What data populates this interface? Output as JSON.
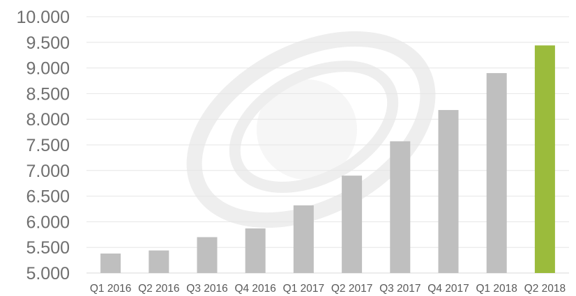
{
  "chart_data": {
    "type": "bar",
    "title": "",
    "xlabel": "",
    "ylabel": "",
    "categories": [
      "Q1 2016",
      "Q2 2016",
      "Q3 2016",
      "Q4 2016",
      "Q1 2017",
      "Q2 2017",
      "Q3 2017",
      "Q4 2017",
      "Q1 2018",
      "Q2 2018"
    ],
    "values": [
      5380,
      5440,
      5700,
      5870,
      6320,
      6900,
      7570,
      8180,
      8900,
      9440
    ],
    "ylim": [
      5000,
      10000
    ],
    "yticks": [
      5000,
      5500,
      6000,
      6500,
      7000,
      7500,
      8000,
      8500,
      9000,
      9500,
      10000
    ],
    "ytick_labels": [
      "5.000",
      "5.500",
      "6.000",
      "6.500",
      "7.000",
      "7.500",
      "8.000",
      "8.500",
      "9.000",
      "9.500",
      "10.000"
    ],
    "grid": true,
    "legend": "none",
    "colors": {
      "bar": "#bfbfbf",
      "highlight": "#9bbb3c",
      "grid": "#e6e6e6",
      "axis": "#d9d9d9",
      "watermark": "#eeeeee"
    },
    "highlight_index": 9
  }
}
